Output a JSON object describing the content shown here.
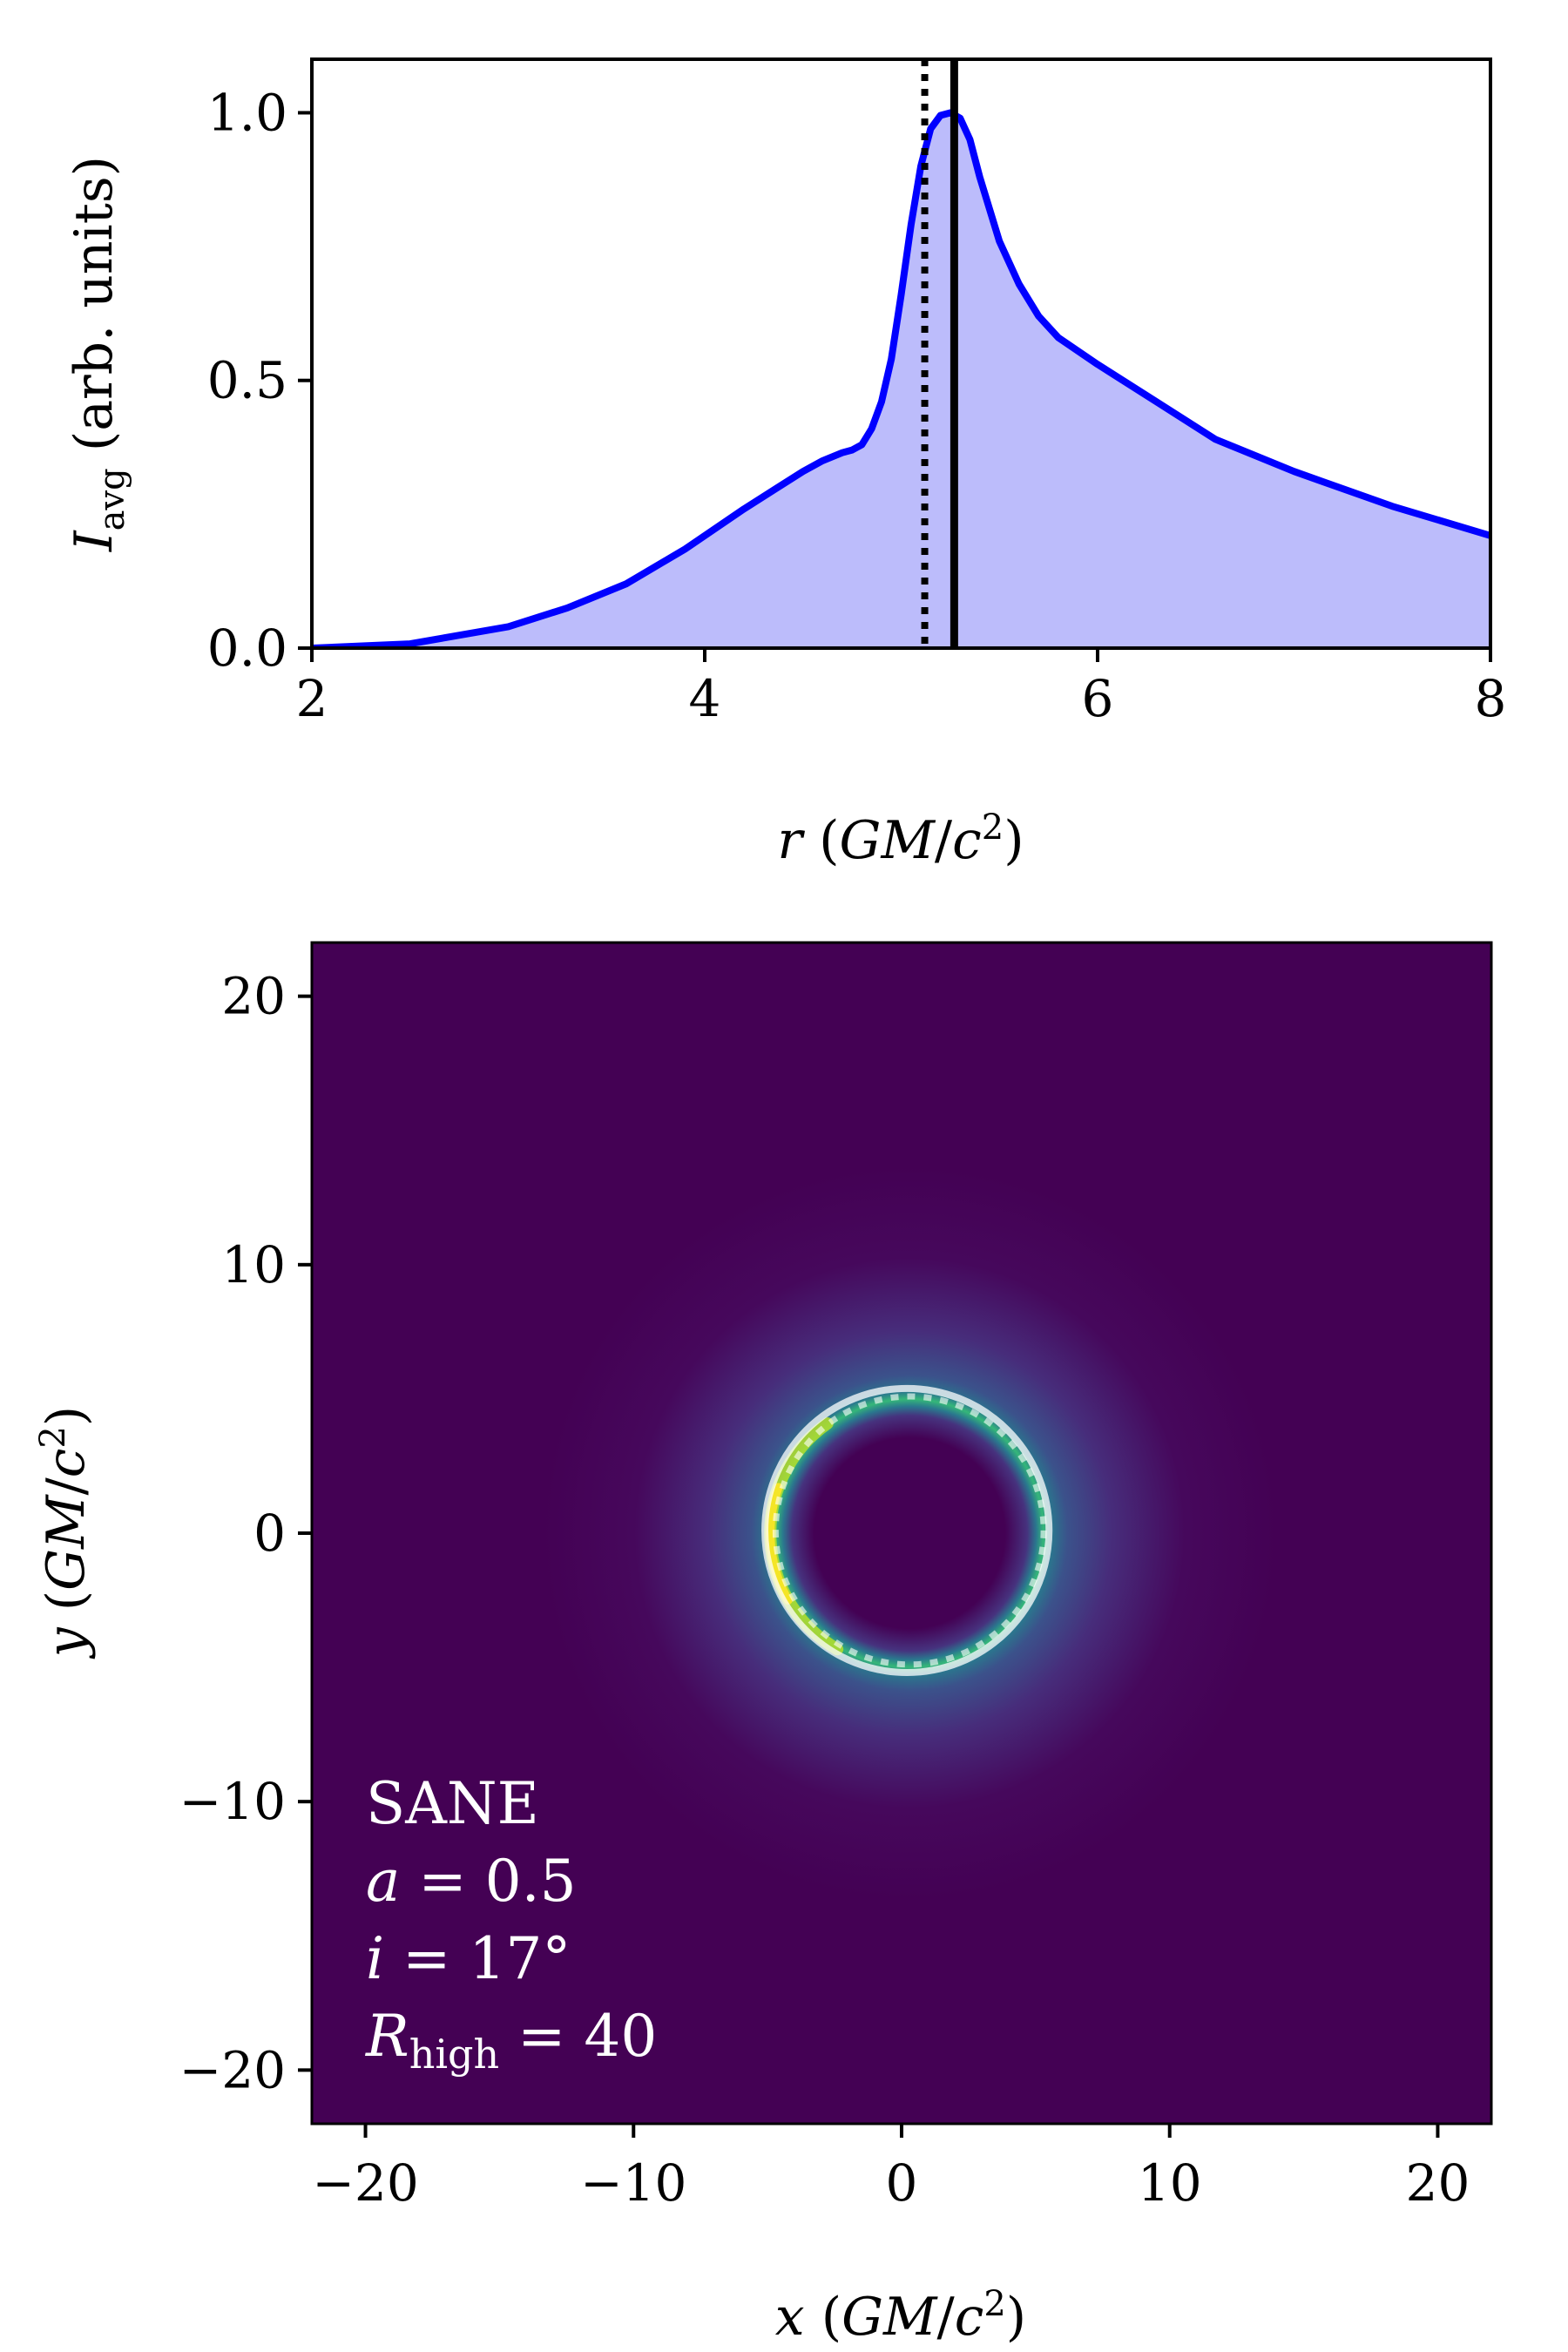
{
  "chart_data": [
    {
      "type": "area",
      "xlabel": "r (GM/c²)",
      "ylabel": "I_avg (arb. units)",
      "xlim": [
        2,
        8
      ],
      "ylim": [
        0,
        1.1
      ],
      "xticks": [
        "2",
        "4",
        "6",
        "8"
      ],
      "yticks": [
        "0.0",
        "0.5",
        "1.0"
      ],
      "grid": false,
      "series": [
        {
          "color": "#0000ff",
          "fill": "#bcbcfb",
          "x": [
            2.0,
            2.5,
            3.0,
            3.3,
            3.6,
            3.9,
            4.2,
            4.5,
            4.6,
            4.7,
            4.75,
            4.8,
            4.85,
            4.9,
            4.95,
            5.0,
            5.05,
            5.1,
            5.15,
            5.2,
            5.25,
            5.3,
            5.35,
            5.4,
            5.5,
            5.6,
            5.7,
            5.8,
            6.0,
            6.3,
            6.6,
            7.0,
            7.5,
            8.0
          ],
          "y": [
            0.0,
            0.008,
            0.04,
            0.075,
            0.12,
            0.185,
            0.26,
            0.33,
            0.35,
            0.365,
            0.37,
            0.38,
            0.41,
            0.46,
            0.54,
            0.66,
            0.79,
            0.9,
            0.97,
            0.995,
            1.0,
            0.99,
            0.95,
            0.88,
            0.76,
            0.68,
            0.62,
            0.58,
            0.53,
            0.46,
            0.39,
            0.33,
            0.265,
            0.21
          ]
        }
      ],
      "vlines": [
        {
          "x": 5.12,
          "style": "dotted",
          "color": "#000000"
        },
        {
          "x": 5.27,
          "style": "solid",
          "color": "#000000"
        }
      ]
    },
    {
      "type": "heatmap",
      "colormap": "viridis",
      "xlabel": "x (GM/c²)",
      "ylabel": "y (GM/c²)",
      "xlim": [
        -22,
        22
      ],
      "ylim": [
        -22,
        22
      ],
      "xticks": [
        "−20",
        "−10",
        "0",
        "10",
        "20"
      ],
      "yticks": [
        "−20",
        "−10",
        "0",
        "10",
        "20"
      ],
      "grid": false,
      "ring_peak_radius": 5.0,
      "ring_center": [
        0.3,
        0.0
      ],
      "overlay_circles": [
        {
          "radius": 5.3,
          "center": [
            0.2,
            0.1
          ],
          "style": "solid",
          "color": "#ffffff"
        },
        {
          "radius": 5.0,
          "center": [
            0.3,
            0.1
          ],
          "style": "dotted",
          "color": "#ffffff"
        }
      ],
      "annotation": [
        "SANE",
        "a = 0.5",
        "i = 17°",
        "R_high = 40"
      ]
    }
  ]
}
